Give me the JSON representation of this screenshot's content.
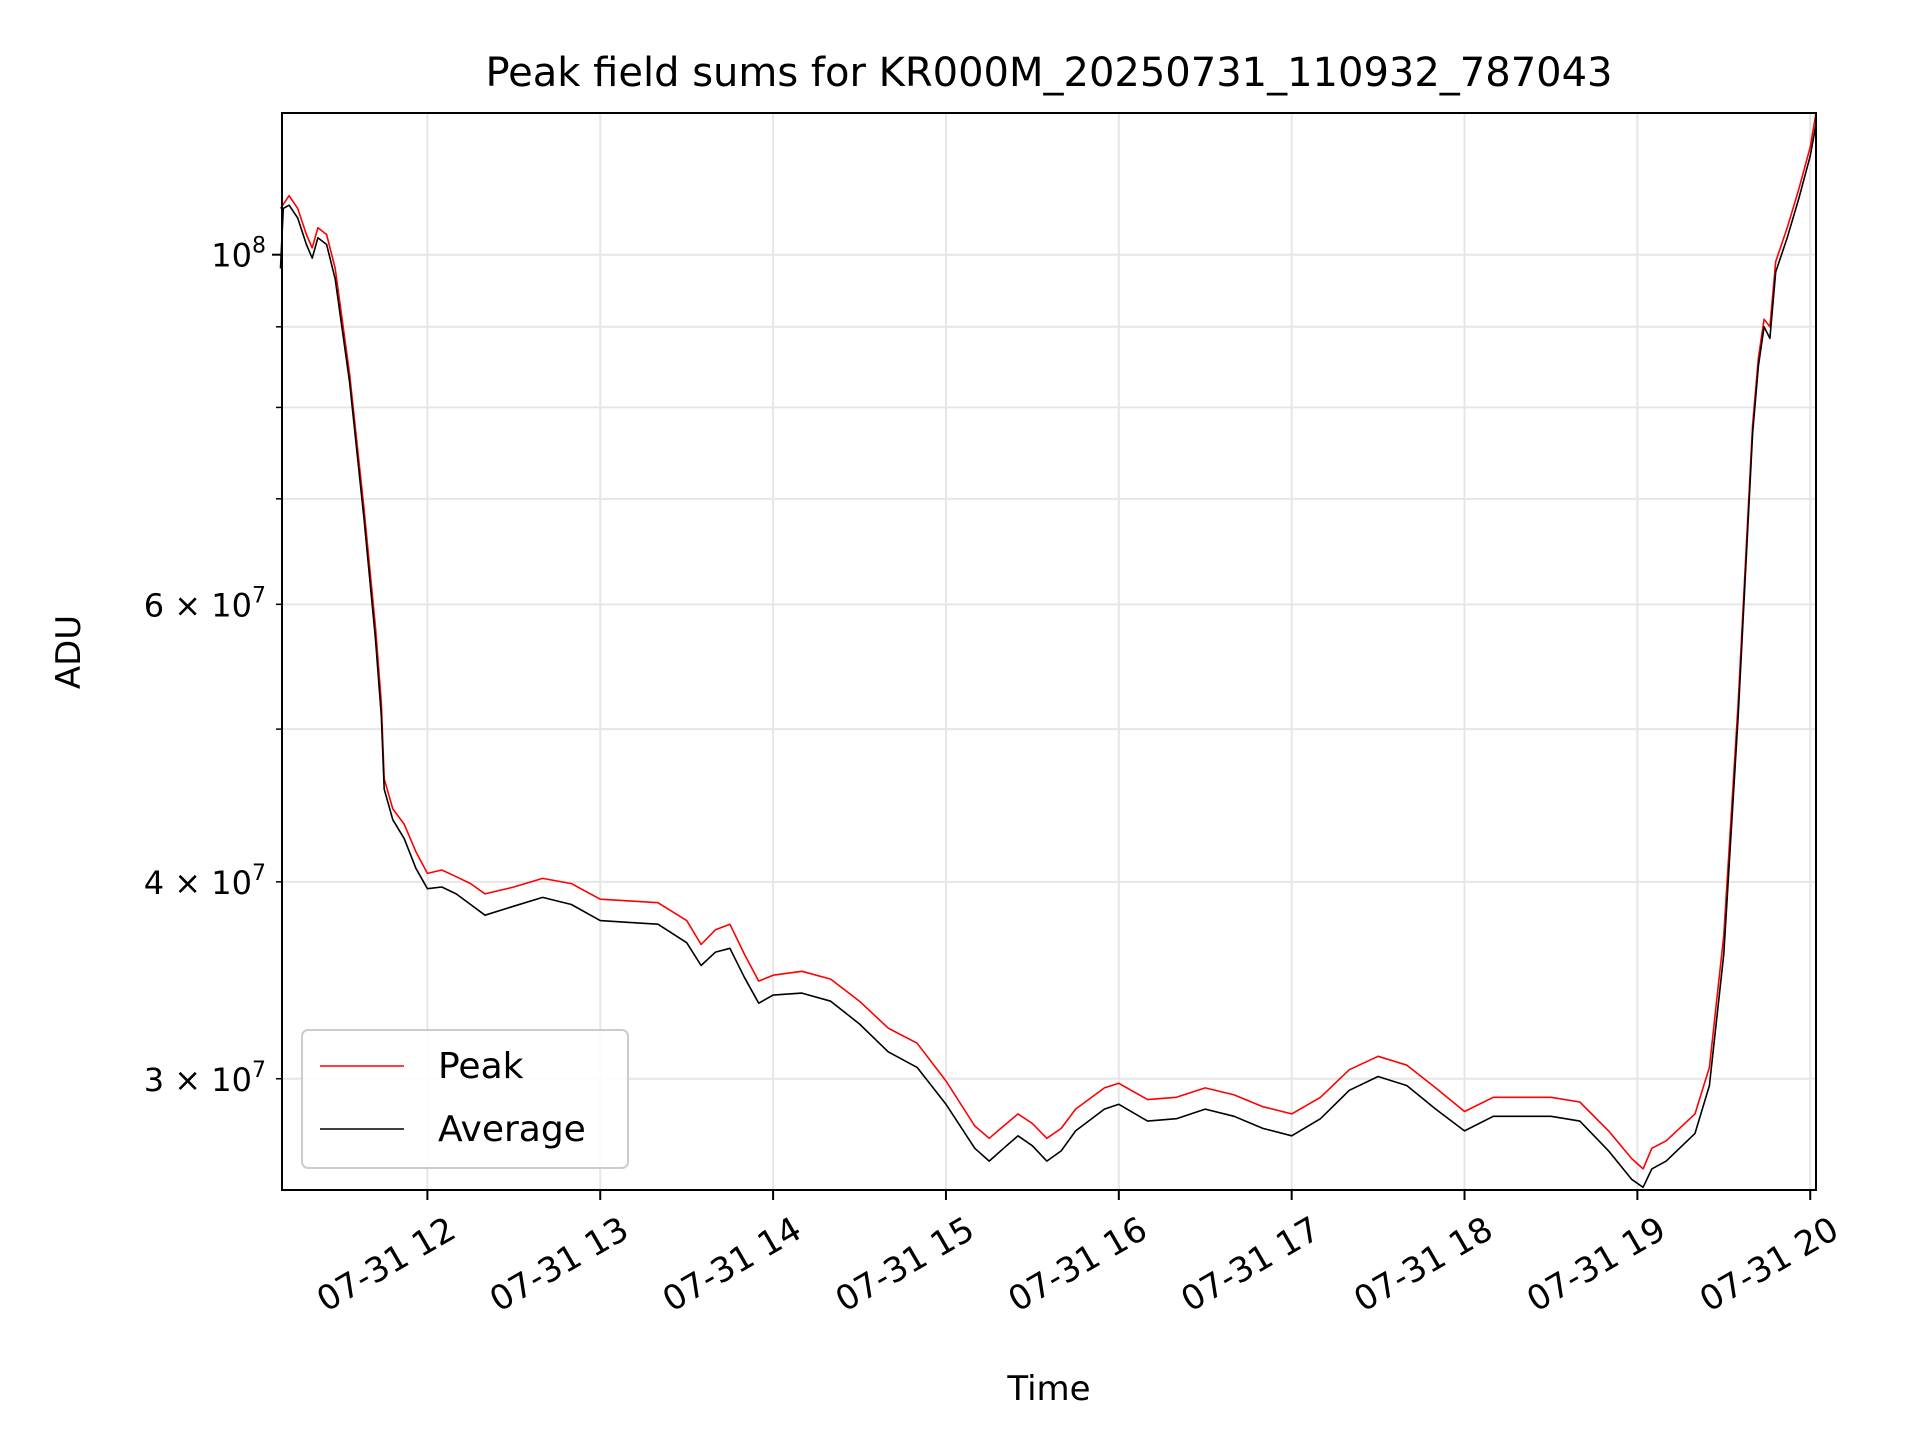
{
  "colors": {
    "peak": "#ff0000",
    "average": "#000000",
    "grid": "#e6e6e6",
    "axes": "#000000"
  },
  "chart_data": {
    "type": "line",
    "title": "Peak field sums for KR000M_20250731_110932_787043",
    "xlabel": "Time",
    "ylabel": "ADU",
    "y_scale": "log",
    "grid": true,
    "legend_placement": "lower-left",
    "xlim": [
      "2025-07-31 11:09:32",
      "2025-07-31 20:02:00"
    ],
    "ylim": [
      25500000,
      123000000
    ],
    "x_ticks": [
      {
        "time": "2025-07-31 12:00",
        "label": "07-31 12"
      },
      {
        "time": "2025-07-31 13:00",
        "label": "07-31 13"
      },
      {
        "time": "2025-07-31 14:00",
        "label": "07-31 14"
      },
      {
        "time": "2025-07-31 15:00",
        "label": "07-31 15"
      },
      {
        "time": "2025-07-31 16:00",
        "label": "07-31 16"
      },
      {
        "time": "2025-07-31 17:00",
        "label": "07-31 17"
      },
      {
        "time": "2025-07-31 18:00",
        "label": "07-31 18"
      },
      {
        "time": "2025-07-31 19:00",
        "label": "07-31 19"
      },
      {
        "time": "2025-07-31 20:00",
        "label": "07-31 20"
      }
    ],
    "y_major_ticks": [
      {
        "value": 100000000,
        "mantissa": "",
        "exponent": "8"
      }
    ],
    "y_minor_ticks": [
      {
        "value": 30000000,
        "mantissa": "3",
        "exponent": "7"
      },
      {
        "value": 40000000,
        "mantissa": "4",
        "exponent": "7"
      },
      {
        "value": 50000000,
        "mantissa": "",
        "exponent": ""
      },
      {
        "value": 60000000,
        "mantissa": "6",
        "exponent": "7"
      },
      {
        "value": 70000000,
        "mantissa": "",
        "exponent": ""
      },
      {
        "value": 80000000,
        "mantissa": "",
        "exponent": ""
      },
      {
        "value": 90000000,
        "mantissa": "",
        "exponent": ""
      }
    ],
    "series": [
      {
        "name": "Peak",
        "color": "#ff0000",
        "points": [
          [
            "2025-07-31 11:09",
            107000000
          ],
          [
            "2025-07-31 11:12",
            109000000
          ],
          [
            "2025-07-31 11:15",
            107000000
          ],
          [
            "2025-07-31 11:18",
            103000000
          ],
          [
            "2025-07-31 11:20",
            101000000
          ],
          [
            "2025-07-31 11:22",
            104000000
          ],
          [
            "2025-07-31 11:25",
            103000000
          ],
          [
            "2025-07-31 11:28",
            98000000
          ],
          [
            "2025-07-31 11:33",
            84000000
          ],
          [
            "2025-07-31 11:38",
            69000000
          ],
          [
            "2025-07-31 11:42",
            58000000
          ],
          [
            "2025-07-31 11:44",
            52000000
          ],
          [
            "2025-07-31 11:45",
            46500000
          ],
          [
            "2025-07-31 11:48",
            44500000
          ],
          [
            "2025-07-31 11:52",
            43500000
          ],
          [
            "2025-07-31 11:56",
            41800000
          ],
          [
            "2025-07-31 12:00",
            40500000
          ],
          [
            "2025-07-31 12:05",
            40700000
          ],
          [
            "2025-07-31 12:10",
            40300000
          ],
          [
            "2025-07-31 12:15",
            39900000
          ],
          [
            "2025-07-31 12:20",
            39300000
          ],
          [
            "2025-07-31 12:30",
            39700000
          ],
          [
            "2025-07-31 12:40",
            40200000
          ],
          [
            "2025-07-31 12:50",
            39900000
          ],
          [
            "2025-07-31 13:00",
            39000000
          ],
          [
            "2025-07-31 13:10",
            38900000
          ],
          [
            "2025-07-31 13:20",
            38800000
          ],
          [
            "2025-07-31 13:30",
            37800000
          ],
          [
            "2025-07-31 13:35",
            36500000
          ],
          [
            "2025-07-31 13:40",
            37300000
          ],
          [
            "2025-07-31 13:45",
            37600000
          ],
          [
            "2025-07-31 13:50",
            36000000
          ],
          [
            "2025-07-31 13:55",
            34600000
          ],
          [
            "2025-07-31 14:00",
            34900000
          ],
          [
            "2025-07-31 14:10",
            35100000
          ],
          [
            "2025-07-31 14:20",
            34700000
          ],
          [
            "2025-07-31 14:30",
            33600000
          ],
          [
            "2025-07-31 14:40",
            32300000
          ],
          [
            "2025-07-31 14:50",
            31600000
          ],
          [
            "2025-07-31 15:00",
            29900000
          ],
          [
            "2025-07-31 15:10",
            28000000
          ],
          [
            "2025-07-31 15:15",
            27500000
          ],
          [
            "2025-07-31 15:20",
            28000000
          ],
          [
            "2025-07-31 15:25",
            28500000
          ],
          [
            "2025-07-31 15:30",
            28100000
          ],
          [
            "2025-07-31 15:35",
            27500000
          ],
          [
            "2025-07-31 15:40",
            27900000
          ],
          [
            "2025-07-31 15:45",
            28700000
          ],
          [
            "2025-07-31 15:55",
            29600000
          ],
          [
            "2025-07-31 16:00",
            29800000
          ],
          [
            "2025-07-31 16:10",
            29100000
          ],
          [
            "2025-07-31 16:20",
            29200000
          ],
          [
            "2025-07-31 16:30",
            29600000
          ],
          [
            "2025-07-31 16:40",
            29300000
          ],
          [
            "2025-07-31 16:50",
            28800000
          ],
          [
            "2025-07-31 17:00",
            28500000
          ],
          [
            "2025-07-31 17:10",
            29200000
          ],
          [
            "2025-07-31 17:20",
            30400000
          ],
          [
            "2025-07-31 17:30",
            31000000
          ],
          [
            "2025-07-31 17:40",
            30600000
          ],
          [
            "2025-07-31 17:50",
            29600000
          ],
          [
            "2025-07-31 18:00",
            28600000
          ],
          [
            "2025-07-31 18:10",
            29200000
          ],
          [
            "2025-07-31 18:20",
            29200000
          ],
          [
            "2025-07-31 18:30",
            29200000
          ],
          [
            "2025-07-31 18:40",
            29000000
          ],
          [
            "2025-07-31 18:50",
            27800000
          ],
          [
            "2025-07-31 18:58",
            26700000
          ],
          [
            "2025-07-31 19:02",
            26300000
          ],
          [
            "2025-07-31 19:05",
            27100000
          ],
          [
            "2025-07-31 19:10",
            27400000
          ],
          [
            "2025-07-31 19:20",
            28500000
          ],
          [
            "2025-07-31 19:25",
            30500000
          ],
          [
            "2025-07-31 19:30",
            37000000
          ],
          [
            "2025-07-31 19:35",
            52000000
          ],
          [
            "2025-07-31 19:40",
            78000000
          ],
          [
            "2025-07-31 19:42",
            86000000
          ],
          [
            "2025-07-31 19:44",
            91000000
          ],
          [
            "2025-07-31 19:46",
            90000000
          ],
          [
            "2025-07-31 19:48",
            99000000
          ],
          [
            "2025-07-31 19:52",
            104000000
          ],
          [
            "2025-07-31 19:56",
            110000000
          ],
          [
            "2025-07-31 20:00",
            117000000
          ],
          [
            "2025-07-31 20:02",
            123000000
          ]
        ]
      },
      {
        "name": "Average",
        "color": "#000000",
        "points": [
          [
            "2025-07-31 11:09",
            98000000
          ],
          [
            "2025-07-31 11:10",
            107000000
          ],
          [
            "2025-07-31 11:12",
            107500000
          ],
          [
            "2025-07-31 11:15",
            105500000
          ],
          [
            "2025-07-31 11:18",
            101500000
          ],
          [
            "2025-07-31 11:20",
            99500000
          ],
          [
            "2025-07-31 11:22",
            102500000
          ],
          [
            "2025-07-31 11:25",
            101500000
          ],
          [
            "2025-07-31 11:28",
            96500000
          ],
          [
            "2025-07-31 11:33",
            83000000
          ],
          [
            "2025-07-31 11:38",
            68000000
          ],
          [
            "2025-07-31 11:42",
            57000000
          ],
          [
            "2025-07-31 11:44",
            51000000
          ],
          [
            "2025-07-31 11:45",
            45800000
          ],
          [
            "2025-07-31 11:48",
            43800000
          ],
          [
            "2025-07-31 11:52",
            42600000
          ],
          [
            "2025-07-31 11:56",
            40800000
          ],
          [
            "2025-07-31 12:00",
            39600000
          ],
          [
            "2025-07-31 12:05",
            39700000
          ],
          [
            "2025-07-31 12:10",
            39300000
          ],
          [
            "2025-07-31 12:15",
            38700000
          ],
          [
            "2025-07-31 12:20",
            38100000
          ],
          [
            "2025-07-31 12:30",
            38600000
          ],
          [
            "2025-07-31 12:40",
            39100000
          ],
          [
            "2025-07-31 12:50",
            38700000
          ],
          [
            "2025-07-31 13:00",
            37800000
          ],
          [
            "2025-07-31 13:10",
            37700000
          ],
          [
            "2025-07-31 13:20",
            37600000
          ],
          [
            "2025-07-31 13:30",
            36600000
          ],
          [
            "2025-07-31 13:35",
            35400000
          ],
          [
            "2025-07-31 13:40",
            36100000
          ],
          [
            "2025-07-31 13:45",
            36300000
          ],
          [
            "2025-07-31 13:50",
            34800000
          ],
          [
            "2025-07-31 13:55",
            33500000
          ],
          [
            "2025-07-31 14:00",
            33900000
          ],
          [
            "2025-07-31 14:10",
            34000000
          ],
          [
            "2025-07-31 14:20",
            33600000
          ],
          [
            "2025-07-31 14:30",
            32500000
          ],
          [
            "2025-07-31 14:40",
            31200000
          ],
          [
            "2025-07-31 14:50",
            30500000
          ],
          [
            "2025-07-31 15:00",
            28900000
          ],
          [
            "2025-07-31 15:10",
            27100000
          ],
          [
            "2025-07-31 15:15",
            26600000
          ],
          [
            "2025-07-31 15:20",
            27100000
          ],
          [
            "2025-07-31 15:25",
            27600000
          ],
          [
            "2025-07-31 15:30",
            27200000
          ],
          [
            "2025-07-31 15:35",
            26600000
          ],
          [
            "2025-07-31 15:40",
            27000000
          ],
          [
            "2025-07-31 15:45",
            27800000
          ],
          [
            "2025-07-31 15:55",
            28700000
          ],
          [
            "2025-07-31 16:00",
            28900000
          ],
          [
            "2025-07-31 16:10",
            28200000
          ],
          [
            "2025-07-31 16:20",
            28300000
          ],
          [
            "2025-07-31 16:30",
            28700000
          ],
          [
            "2025-07-31 16:40",
            28400000
          ],
          [
            "2025-07-31 16:50",
            27900000
          ],
          [
            "2025-07-31 17:00",
            27600000
          ],
          [
            "2025-07-31 17:10",
            28300000
          ],
          [
            "2025-07-31 17:20",
            29500000
          ],
          [
            "2025-07-31 17:30",
            30100000
          ],
          [
            "2025-07-31 17:40",
            29700000
          ],
          [
            "2025-07-31 17:50",
            28700000
          ],
          [
            "2025-07-31 18:00",
            27800000
          ],
          [
            "2025-07-31 18:10",
            28400000
          ],
          [
            "2025-07-31 18:20",
            28400000
          ],
          [
            "2025-07-31 18:30",
            28400000
          ],
          [
            "2025-07-31 18:40",
            28200000
          ],
          [
            "2025-07-31 18:50",
            27000000
          ],
          [
            "2025-07-31 18:58",
            25900000
          ],
          [
            "2025-07-31 19:02",
            25600000
          ],
          [
            "2025-07-31 19:05",
            26300000
          ],
          [
            "2025-07-31 19:10",
            26600000
          ],
          [
            "2025-07-31 19:20",
            27700000
          ],
          [
            "2025-07-31 19:25",
            29700000
          ],
          [
            "2025-07-31 19:30",
            36000000
          ],
          [
            "2025-07-31 19:35",
            51000000
          ],
          [
            "2025-07-31 19:40",
            77000000
          ],
          [
            "2025-07-31 19:42",
            85000000
          ],
          [
            "2025-07-31 19:44",
            90000000
          ],
          [
            "2025-07-31 19:46",
            88500000
          ],
          [
            "2025-07-31 19:48",
            97500000
          ],
          [
            "2025-07-31 19:52",
            102500000
          ],
          [
            "2025-07-31 19:56",
            108500000
          ],
          [
            "2025-07-31 20:00",
            115500000
          ],
          [
            "2025-07-31 20:02",
            121000000
          ]
        ]
      }
    ]
  }
}
